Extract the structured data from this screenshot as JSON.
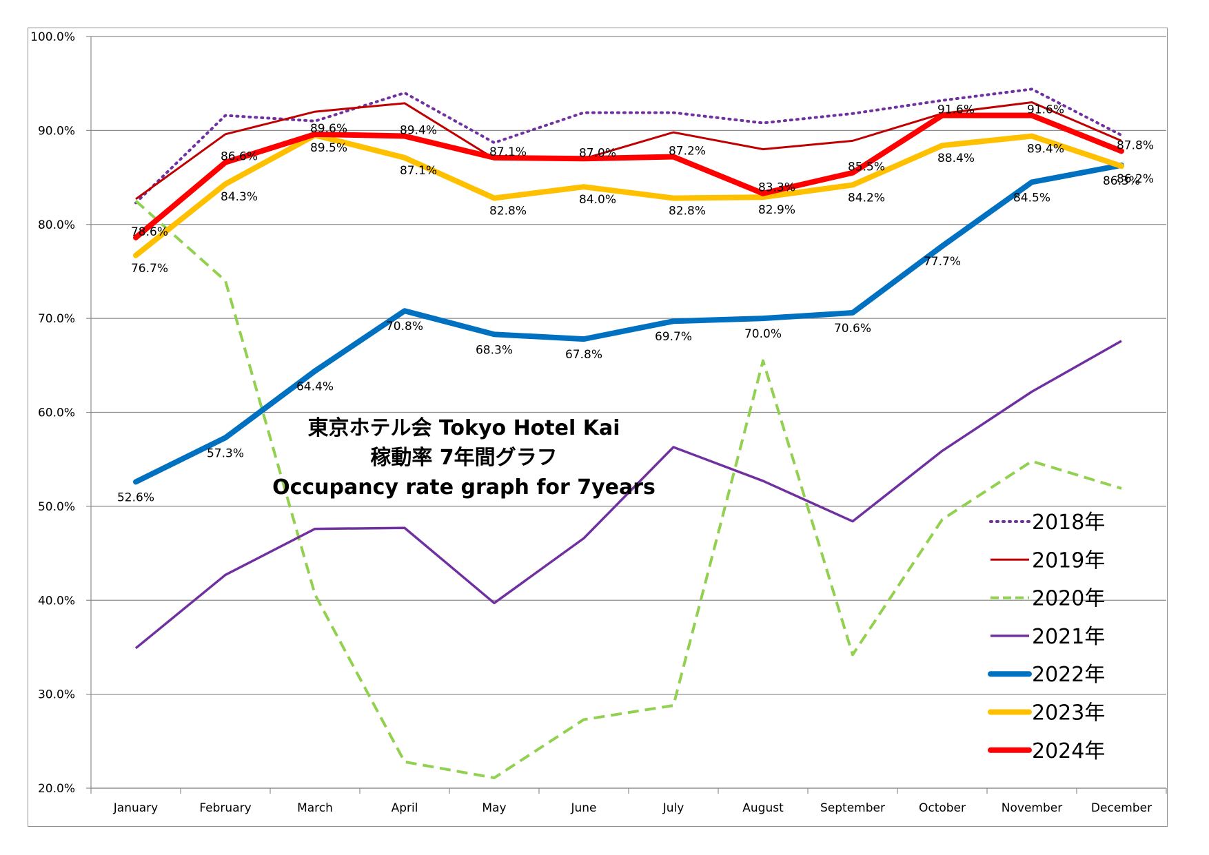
{
  "chart_data": {
    "type": "line",
    "title_lines": [
      "東京ホテル会  Tokyo Hotel Kai",
      "稼動率 7年間グラフ",
      "Occupancy rate graph for 7years"
    ],
    "xlabel": "",
    "ylabel": "",
    "categories": [
      "January",
      "February",
      "March",
      "April",
      "May",
      "June",
      "July",
      "August",
      "September",
      "October",
      "November",
      "December"
    ],
    "ylim": [
      20,
      100
    ],
    "yticks": [
      "20.0%",
      "30.0%",
      "40.0%",
      "50.0%",
      "60.0%",
      "70.0%",
      "80.0%",
      "90.0%",
      "100.0%"
    ],
    "grid": "horizontal",
    "legend_position": "bottom-right",
    "series": [
      {
        "name": "2018年",
        "color": "#7030a0",
        "style": "dotted",
        "width": 4,
        "values": [
          82.3,
          91.6,
          91.0,
          94.0,
          88.7,
          91.9,
          91.9,
          90.8,
          91.8,
          93.2,
          94.4,
          89.5
        ],
        "labels": null
      },
      {
        "name": "2019年",
        "color": "#c00000",
        "style": "solid",
        "width": 3,
        "values": [
          82.7,
          89.6,
          92.0,
          92.9,
          87.0,
          87.0,
          89.8,
          88.0,
          88.9,
          91.8,
          93.0,
          88.9
        ],
        "labels": null
      },
      {
        "name": "2020年",
        "color": "#92d050",
        "style": "dashed",
        "width": 4,
        "values": [
          82.5,
          74.0,
          40.6,
          22.8,
          21.1,
          27.3,
          28.8,
          65.5,
          34.2,
          48.6,
          54.8,
          51.9
        ],
        "labels": null
      },
      {
        "name": "2021年",
        "color": "#7030a0",
        "style": "solid",
        "width": 3.5,
        "values": [
          34.9,
          42.7,
          47.6,
          47.7,
          39.7,
          46.6,
          56.3,
          52.7,
          48.4,
          55.9,
          62.2,
          67.6
        ],
        "labels": null
      },
      {
        "name": "2022年",
        "color": "#0070c0",
        "style": "solid",
        "width": 8,
        "values": [
          52.6,
          57.3,
          64.4,
          70.8,
          68.3,
          67.8,
          69.7,
          70.0,
          70.6,
          77.7,
          84.5,
          86.3
        ],
        "labels": [
          "52.6%",
          "57.3%",
          "64.4%",
          "70.8%",
          "68.3%",
          "67.8%",
          "69.7%",
          "70.0%",
          "70.6%",
          "77.7%",
          "84.5%",
          "86.3%"
        ]
      },
      {
        "name": "2023年",
        "color": "#ffc000",
        "style": "solid",
        "width": 8,
        "values": [
          76.7,
          84.3,
          89.5,
          87.1,
          82.8,
          84.0,
          82.8,
          82.9,
          84.2,
          88.4,
          89.4,
          86.2
        ],
        "labels": [
          "76.7%",
          "84.3%",
          "89.5%",
          "87.1%",
          "82.8%",
          "84.0%",
          "82.8%",
          "82.9%",
          "84.2%",
          "88.4%",
          "89.4%",
          "86.2%"
        ]
      },
      {
        "name": "2024年",
        "color": "#ff0000",
        "style": "solid",
        "width": 8,
        "values": [
          78.6,
          86.6,
          89.6,
          89.4,
          87.1,
          87.0,
          87.2,
          83.3,
          85.5,
          91.6,
          91.6,
          87.8
        ],
        "labels": [
          "78.6%",
          "86.6%",
          "89.6%",
          "89.4%",
          "87.1%",
          "87.0%",
          "87.2%",
          "83.3%",
          "85.5%",
          "91.6%",
          "91.6%",
          "87.8%"
        ]
      }
    ]
  }
}
